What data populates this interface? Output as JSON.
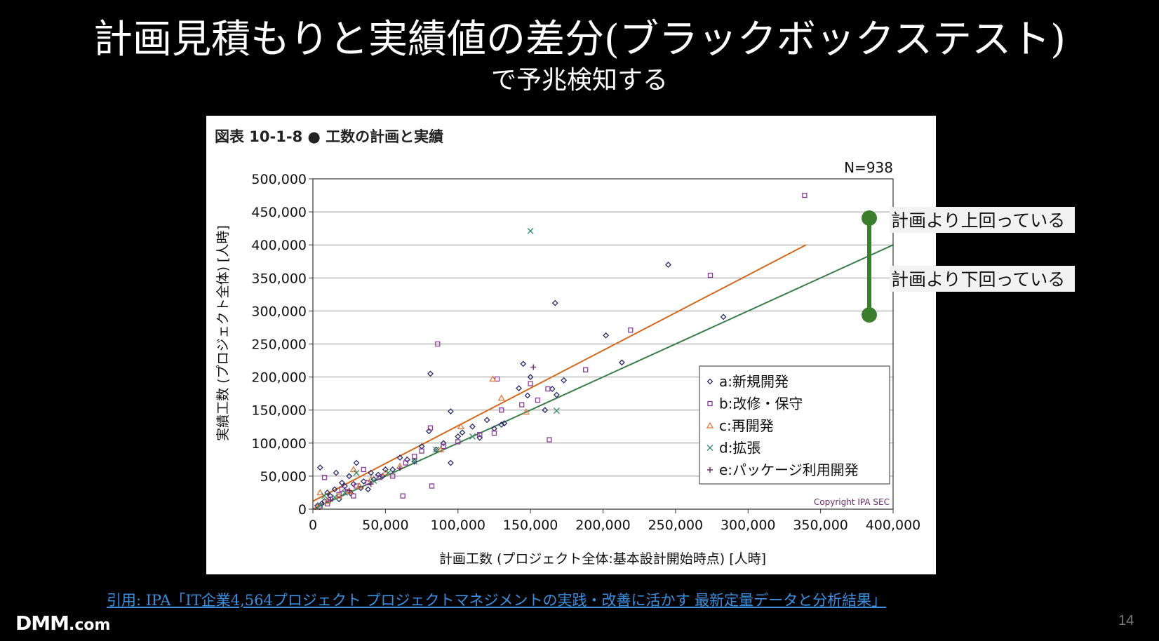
{
  "slide": {
    "title_line1": "計画見積もりと実績値の差分(ブラックボックステスト)",
    "title_line2": "で予兆検知する",
    "citation": "引用:  IPA「IT企業4,564プロジェクト プロジェクトマネジメントの実践・改善に活かす 最新定量データと分析結果」 ",
    "logo": "DMM",
    "logo_suffix": ".com",
    "page_number": "14"
  },
  "annotations": {
    "upper": "計画より上回っている",
    "lower": "計画より下回っている",
    "bracket_color": "#3a7d2c"
  },
  "chart_data": {
    "type": "scatter",
    "title": "図表 10-1-8 ● 工数の計画と実績",
    "n_label": "N=938",
    "xlabel": "計画工数 (プロジェクト全体:基本設計開始時点) [人時]",
    "ylabel": "実績工数 (プロジェクト全体) [人時]",
    "copyright": "Copyright IPA SEC",
    "xlim": [
      0,
      400000
    ],
    "ylim": [
      0,
      500000
    ],
    "xticks": [
      0,
      50000,
      100000,
      150000,
      200000,
      250000,
      300000,
      350000,
      400000
    ],
    "yticks": [
      0,
      50000,
      100000,
      150000,
      200000,
      250000,
      300000,
      350000,
      400000,
      450000,
      500000
    ],
    "xtick_labels": [
      "0",
      "50,000",
      "100,000",
      "150,000",
      "200,000",
      "250,000",
      "300,000",
      "350,000",
      "400,000"
    ],
    "ytick_labels": [
      "0",
      "50,000",
      "100,000",
      "150,000",
      "200,000",
      "250,000",
      "300,000",
      "350,000",
      "400,000",
      "450,000",
      "500,000"
    ],
    "grid": "horizontal",
    "legend_position": "bottom-right",
    "lines": [
      {
        "color": "#d2691e",
        "x": [
          0,
          340000
        ],
        "y": [
          12000,
          400000
        ]
      },
      {
        "color": "#3a7d4a",
        "x": [
          0,
          400000
        ],
        "y": [
          0,
          400000
        ]
      }
    ],
    "series": [
      {
        "name": "a:新規開発",
        "marker": "diamond",
        "color": "#2a2a6a",
        "points": [
          [
            245000,
            370000
          ],
          [
            167000,
            312000
          ],
          [
            283000,
            291000
          ],
          [
            202000,
            263000
          ],
          [
            213000,
            222000
          ],
          [
            81000,
            205000
          ],
          [
            145000,
            220000
          ],
          [
            173000,
            195000
          ],
          [
            165000,
            182000
          ],
          [
            148000,
            172000
          ],
          [
            142000,
            183000
          ],
          [
            168000,
            173000
          ],
          [
            95000,
            148000
          ],
          [
            120000,
            135000
          ],
          [
            110000,
            125000
          ],
          [
            103000,
            116000
          ],
          [
            132000,
            130000
          ],
          [
            80000,
            118000
          ],
          [
            75000,
            95000
          ],
          [
            85000,
            90000
          ],
          [
            95000,
            70000
          ],
          [
            60000,
            78000
          ],
          [
            50000,
            60000
          ],
          [
            40000,
            55000
          ],
          [
            35000,
            42000
          ],
          [
            30000,
            70000
          ],
          [
            25000,
            50000
          ],
          [
            20000,
            40000
          ],
          [
            15000,
            30000
          ],
          [
            10000,
            25000
          ],
          [
            5000,
            63000
          ],
          [
            8000,
            12000
          ],
          [
            12000,
            20000
          ],
          [
            22000,
            35000
          ],
          [
            28000,
            38000
          ],
          [
            33000,
            32000
          ],
          [
            45000,
            52000
          ],
          [
            55000,
            60000
          ],
          [
            65000,
            75000
          ],
          [
            70000,
            72000
          ],
          [
            90000,
            100000
          ],
          [
            100000,
            110000
          ],
          [
            115000,
            108000
          ],
          [
            125000,
            122000
          ],
          [
            130000,
            128000
          ],
          [
            18000,
            15000
          ],
          [
            3000,
            5000
          ],
          [
            6000,
            8000
          ],
          [
            26000,
            24000
          ],
          [
            38000,
            30000
          ],
          [
            42000,
            45000
          ],
          [
            48000,
            50000
          ],
          [
            16000,
            55000
          ],
          [
            150000,
            200000
          ],
          [
            160000,
            150000
          ]
        ]
      },
      {
        "name": "b:改修・保守",
        "marker": "square",
        "color": "#8a3a9a",
        "points": [
          [
            339000,
            475000
          ],
          [
            274000,
            354000
          ],
          [
            219000,
            271000
          ],
          [
            188000,
            211000
          ],
          [
            86000,
            250000
          ],
          [
            163000,
            105000
          ],
          [
            127000,
            197000
          ],
          [
            81000,
            123000
          ],
          [
            82000,
            35000
          ],
          [
            130000,
            150000
          ],
          [
            144000,
            158000
          ],
          [
            155000,
            165000
          ],
          [
            150000,
            190000
          ],
          [
            162000,
            182000
          ],
          [
            125000,
            115000
          ],
          [
            115000,
            113000
          ],
          [
            100000,
            102000
          ],
          [
            90000,
            95000
          ],
          [
            70000,
            80000
          ],
          [
            62000,
            20000
          ],
          [
            55000,
            50000
          ],
          [
            46000,
            48000
          ],
          [
            38000,
            40000
          ],
          [
            30000,
            35000
          ],
          [
            24000,
            27000
          ],
          [
            18000,
            22000
          ],
          [
            12000,
            15000
          ],
          [
            8000,
            48000
          ],
          [
            5000,
            5000
          ],
          [
            10000,
            8000
          ],
          [
            35000,
            60000
          ],
          [
            64000,
            70000
          ],
          [
            75000,
            88000
          ],
          [
            20000,
            30000
          ],
          [
            28000,
            20000
          ]
        ]
      },
      {
        "name": "c:再開発",
        "marker": "triangle",
        "color": "#e0783a",
        "points": [
          [
            124000,
            197000
          ],
          [
            130000,
            168000
          ],
          [
            147000,
            147000
          ],
          [
            88000,
            90000
          ],
          [
            102000,
            125000
          ],
          [
            60000,
            65000
          ],
          [
            50000,
            55000
          ],
          [
            40000,
            45000
          ],
          [
            32000,
            35000
          ],
          [
            25000,
            27000
          ],
          [
            18000,
            20000
          ],
          [
            10000,
            12000
          ],
          [
            5000,
            25000
          ],
          [
            3000,
            3000
          ],
          [
            28000,
            60000
          ]
        ]
      },
      {
        "name": "d:拡張",
        "marker": "x",
        "color": "#3a8a6a",
        "points": [
          [
            150000,
            421000
          ],
          [
            168000,
            149000
          ],
          [
            85000,
            90000
          ],
          [
            110000,
            110000
          ],
          [
            70000,
            72000
          ],
          [
            52000,
            55000
          ],
          [
            42000,
            43000
          ],
          [
            30000,
            55000
          ],
          [
            22000,
            25000
          ],
          [
            15000,
            18000
          ],
          [
            8000,
            20000
          ],
          [
            5000,
            6000
          ]
        ]
      },
      {
        "name": "e:パッケージ利用開発",
        "marker": "plus",
        "color": "#6a2a6a",
        "points": [
          [
            152000,
            215000
          ],
          [
            60000,
            62000
          ],
          [
            40000,
            38000
          ],
          [
            25000,
            28000
          ],
          [
            12000,
            14000
          ]
        ]
      }
    ]
  }
}
